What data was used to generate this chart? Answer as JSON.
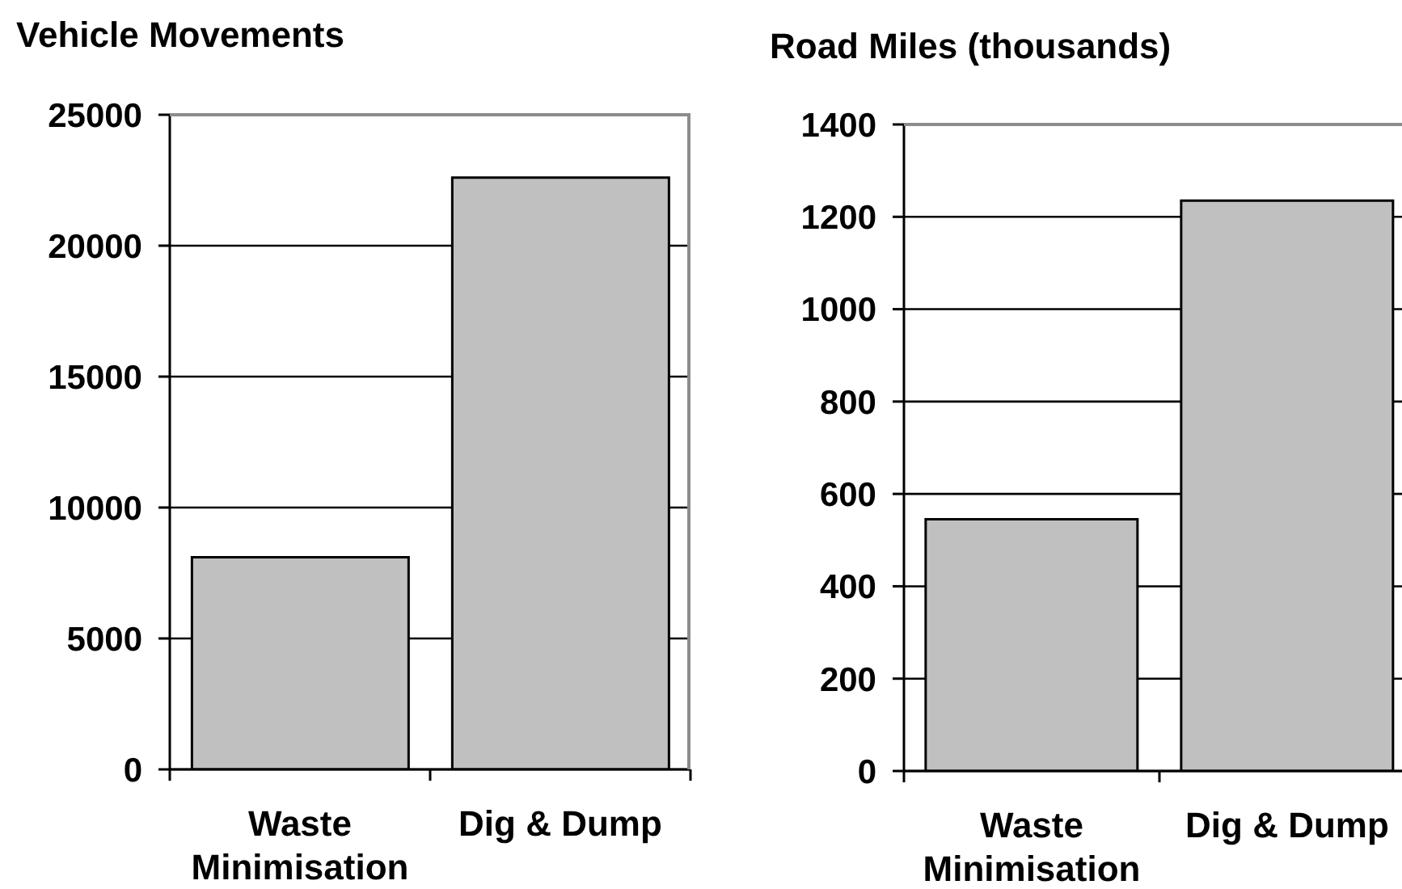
{
  "chart_data": [
    {
      "type": "bar",
      "title": "Vehicle Movements",
      "categories": [
        "Waste Minimisation",
        "Dig & Dump"
      ],
      "values": [
        8100,
        22600
      ],
      "color": "#c0c0c0",
      "ylim": [
        0,
        25000
      ],
      "yticks": [
        0,
        5000,
        10000,
        15000,
        20000,
        25000
      ],
      "grid": "y"
    },
    {
      "type": "bar",
      "title": "Road Miles (thousands)",
      "categories": [
        "Waste Minimisation",
        "Dig & Dump"
      ],
      "values": [
        545,
        1235
      ],
      "color": "#c0c0c0",
      "ylim": [
        0,
        1400
      ],
      "yticks": [
        0,
        200,
        400,
        600,
        800,
        1000,
        1200,
        1400
      ],
      "grid": "y"
    }
  ]
}
